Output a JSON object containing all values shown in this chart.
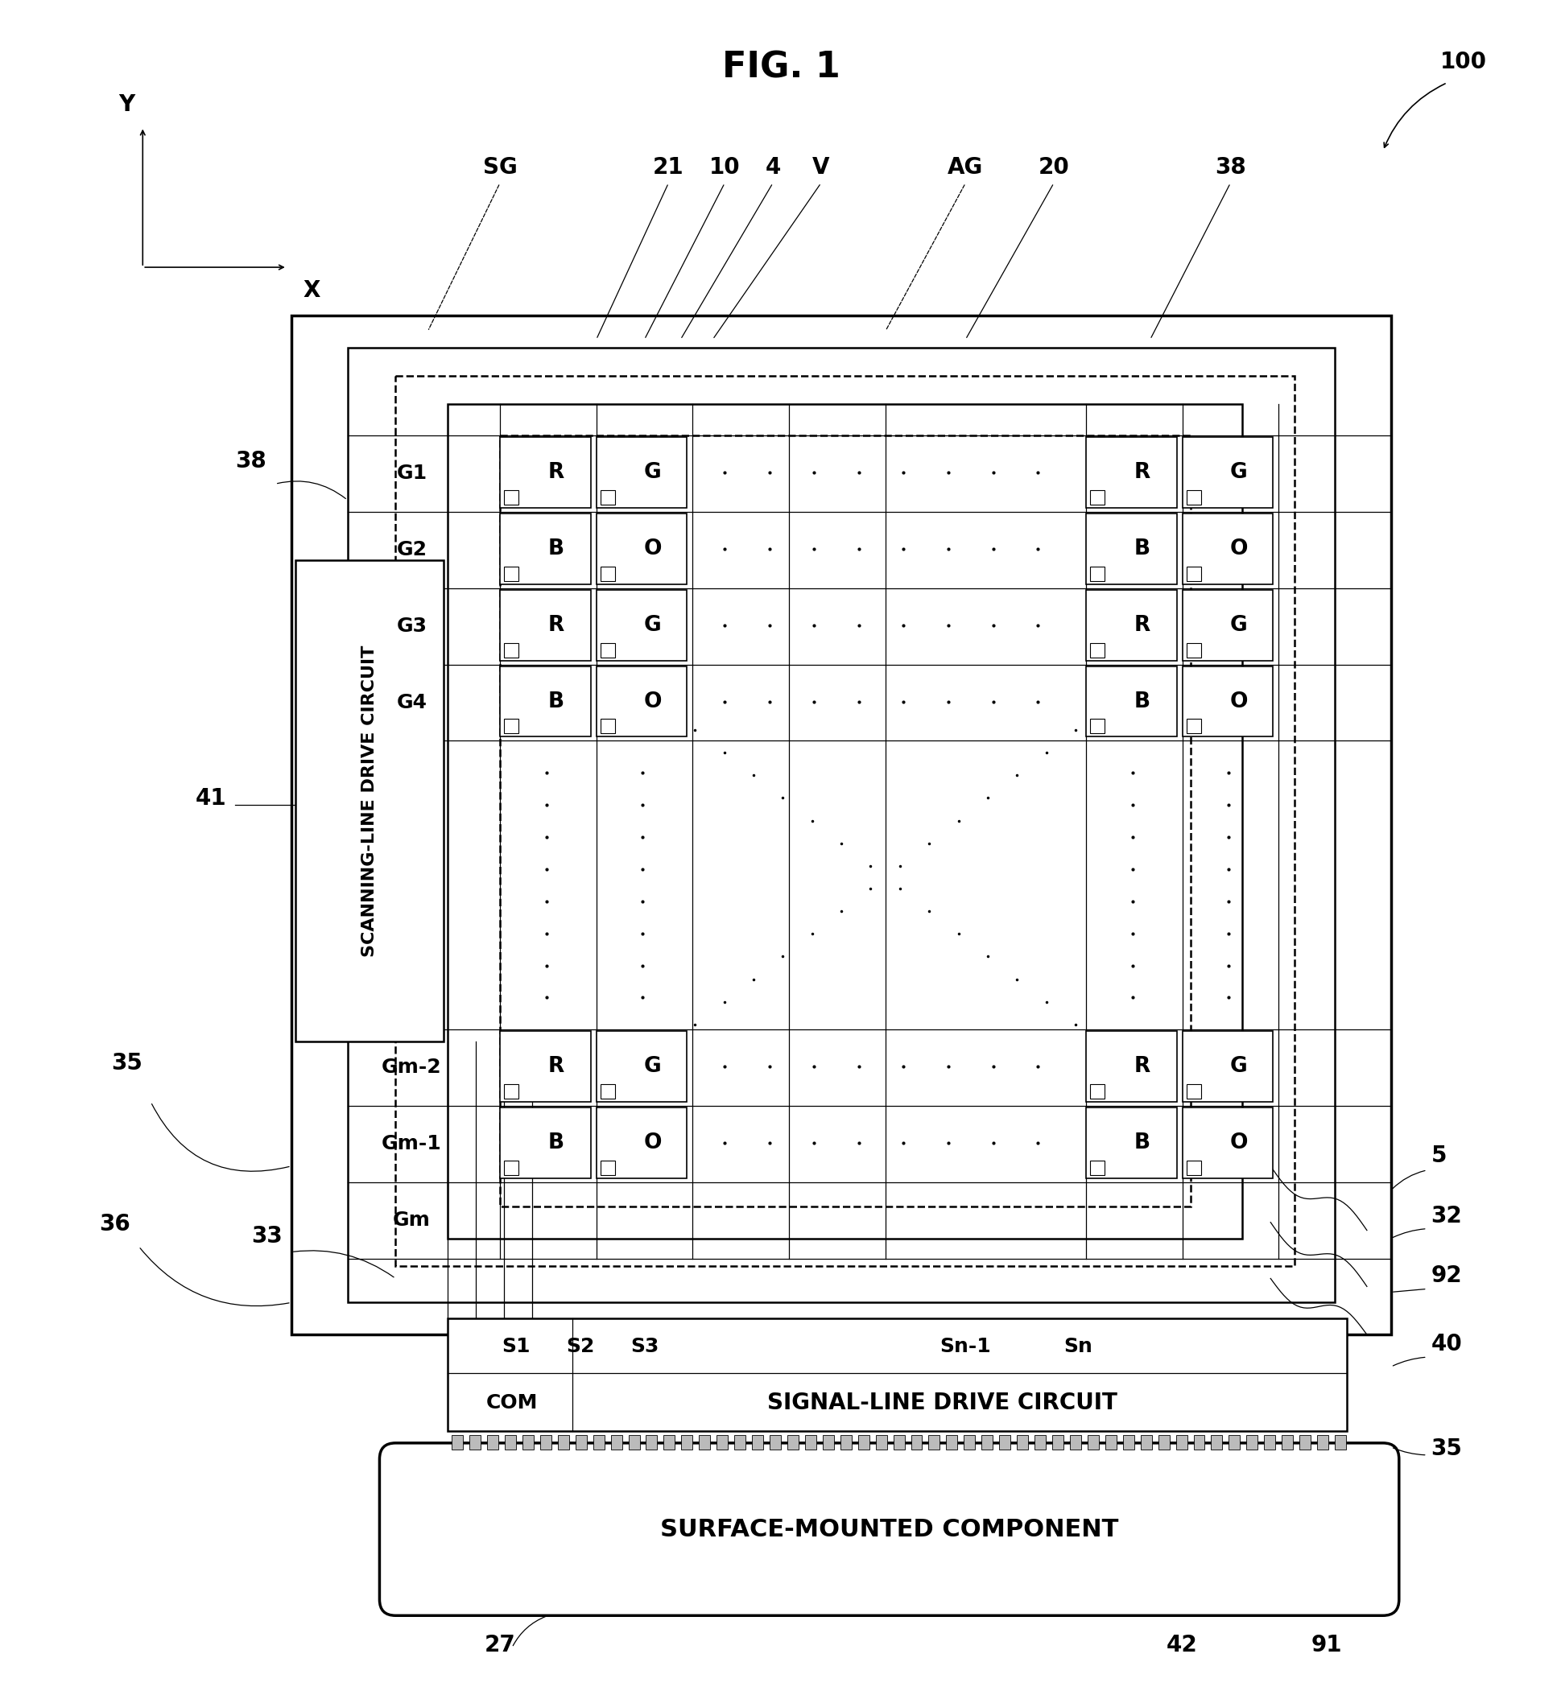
{
  "bg": "#ffffff",
  "fw": 19.4,
  "fh": 21.01,
  "title": "FIG. 1",
  "scanning_text": "SCANNING-LINE DRIVE CIRCUIT",
  "signal_text": "SIGNAL-LINE DRIVE CIRCUIT",
  "surface_text": "SURFACE-MOUNTED COMPONENT",
  "axis_x": "X",
  "axis_y": "Y",
  "row_labels_top": [
    "G1",
    "G2",
    "G3",
    "G4"
  ],
  "row_labels_bot": [
    "Gm-2",
    "Gm-1",
    "Gm"
  ],
  "pixel_top_labels": [
    [
      "R",
      "G"
    ],
    [
      "B",
      "O"
    ],
    [
      "R",
      "G"
    ],
    [
      "B",
      "O"
    ]
  ],
  "pixel_bot_labels": [
    [
      "R",
      "G"
    ],
    [
      "B",
      "O"
    ]
  ],
  "signal_col_labels": [
    "S1",
    "S2",
    "S3",
    "Sn-1",
    "Sn"
  ]
}
